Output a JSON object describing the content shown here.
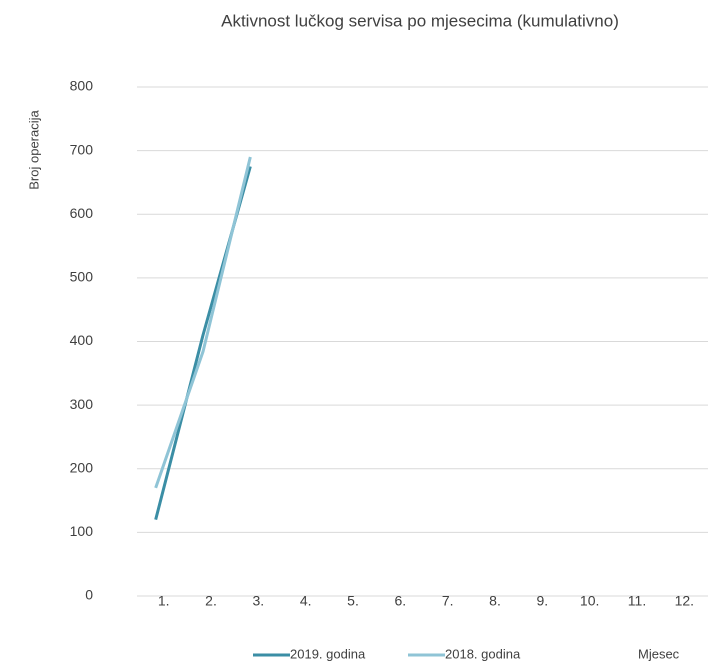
{
  "chart_data": {
    "type": "line",
    "title": "Aktivnost lučkog servisa po mjesecima (kumulativno)",
    "y_label": "Broj operacija",
    "x_label": "Mjesec",
    "categories": [
      "1.",
      "2.",
      "3.",
      "4.",
      "5.",
      "6.",
      "7.",
      "8.",
      "9.",
      "10.",
      "11.",
      "12."
    ],
    "series": [
      {
        "name": "2019. godina",
        "color": "#3b8ea5",
        "values": [
          120,
          410,
          675,
          null,
          null,
          null,
          null,
          null,
          null,
          null,
          null,
          null
        ]
      },
      {
        "name": "2018. godina",
        "color": "#8fc4d6",
        "values": [
          170,
          384,
          690,
          null,
          null,
          null,
          null,
          null,
          null,
          null,
          null,
          null
        ]
      }
    ],
    "ylim": [
      0,
      800
    ],
    "yticks": [
      0,
      100,
      200,
      300,
      400,
      500,
      600,
      700,
      800
    ],
    "grid": true,
    "legend": "bottom"
  }
}
